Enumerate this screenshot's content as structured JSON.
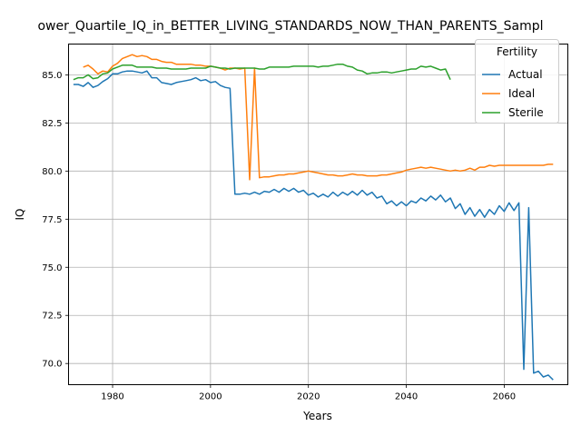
{
  "chart_data": {
    "type": "line",
    "title": "ower_Quartile_IQ_in_BETTER_LIVING_STANDARDS_NOW_THAN_PARENTS_Sampl",
    "xlabel": "Years",
    "ylabel": "IQ",
    "xlim": [
      1971,
      2073
    ],
    "ylim": [
      68.9,
      86.6
    ],
    "xticks": [
      1980,
      2000,
      2020,
      2040,
      2060
    ],
    "yticks": [
      70.0,
      72.5,
      75.0,
      77.5,
      80.0,
      82.5,
      85.0
    ],
    "grid": true,
    "legend": {
      "title": "Fertility",
      "placement": "top-right"
    },
    "series": [
      {
        "name": "Actual",
        "color": "#1f77b4",
        "x": [
          1972,
          1973,
          1974,
          1975,
          1976,
          1977,
          1978,
          1979,
          1980,
          1981,
          1982,
          1983,
          1984,
          1985,
          1986,
          1987,
          1988,
          1989,
          1990,
          1991,
          1992,
          1993,
          1994,
          1995,
          1996,
          1997,
          1998,
          1999,
          2000,
          2001,
          2002,
          2003,
          2004,
          2005,
          2006,
          2007,
          2008,
          2009,
          2010,
          2011,
          2012,
          2013,
          2014,
          2015,
          2016,
          2017,
          2018,
          2019,
          2020,
          2021,
          2022,
          2023,
          2024,
          2025,
          2026,
          2027,
          2028,
          2029,
          2030,
          2031,
          2032,
          2033,
          2034,
          2035,
          2036,
          2037,
          2038,
          2039,
          2040,
          2041,
          2042,
          2043,
          2044,
          2045,
          2046,
          2047,
          2048,
          2049,
          2050,
          2051,
          2052,
          2053,
          2054,
          2055,
          2056,
          2057,
          2058,
          2059,
          2060,
          2061,
          2062,
          2063,
          2064,
          2065,
          2066,
          2067,
          2068,
          2069,
          2070
        ],
        "y": [
          84.5,
          84.5,
          84.4,
          84.6,
          84.35,
          84.45,
          84.65,
          84.8,
          85.05,
          85.05,
          85.15,
          85.2,
          85.2,
          85.15,
          85.1,
          85.2,
          84.85,
          84.85,
          84.6,
          84.55,
          84.5,
          84.6,
          84.65,
          84.7,
          84.75,
          84.85,
          84.7,
          84.75,
          84.6,
          84.65,
          84.45,
          84.35,
          84.3,
          78.8,
          78.8,
          78.85,
          78.8,
          78.9,
          78.8,
          78.95,
          78.9,
          79.05,
          78.9,
          79.1,
          78.95,
          79.1,
          78.9,
          79.0,
          78.75,
          78.85,
          78.65,
          78.8,
          78.65,
          78.9,
          78.7,
          78.9,
          78.75,
          78.95,
          78.75,
          79.0,
          78.75,
          78.9,
          78.6,
          78.7,
          78.3,
          78.45,
          78.2,
          78.4,
          78.2,
          78.45,
          78.35,
          78.6,
          78.45,
          78.7,
          78.5,
          78.75,
          78.4,
          78.6,
          78.05,
          78.3,
          77.75,
          78.1,
          77.65,
          78.0,
          77.6,
          78.0,
          77.75,
          78.2,
          77.9,
          78.35,
          77.95,
          78.35,
          69.7,
          78.1,
          69.5,
          69.6,
          69.3,
          69.4,
          69.15
        ]
      },
      {
        "name": "Ideal",
        "color": "#ff7f0e",
        "x": [
          1974,
          1975,
          1976,
          1977,
          1978,
          1979,
          1980,
          1981,
          1982,
          1983,
          1984,
          1985,
          1986,
          1987,
          1988,
          1989,
          1990,
          1991,
          1992,
          1993,
          1994,
          1995,
          1996,
          1997,
          1998,
          1999,
          2000,
          2001,
          2002,
          2003,
          2004,
          2005,
          2006,
          2007,
          2008,
          2009,
          2010,
          2011,
          2012,
          2013,
          2014,
          2015,
          2016,
          2017,
          2018,
          2019,
          2020,
          2021,
          2022,
          2023,
          2024,
          2025,
          2026,
          2027,
          2028,
          2029,
          2030,
          2031,
          2032,
          2033,
          2034,
          2035,
          2036,
          2037,
          2038,
          2039,
          2040,
          2041,
          2042,
          2043,
          2044,
          2045,
          2046,
          2047,
          2048,
          2049,
          2050,
          2051,
          2052,
          2053,
          2054,
          2055,
          2056,
          2057,
          2058,
          2059,
          2060,
          2061,
          2062,
          2063,
          2064,
          2065,
          2066,
          2067,
          2068,
          2069,
          2070
        ],
        "y": [
          85.4,
          85.5,
          85.3,
          85.05,
          85.2,
          85.15,
          85.45,
          85.6,
          85.85,
          85.95,
          86.05,
          85.95,
          86.0,
          85.95,
          85.8,
          85.8,
          85.7,
          85.65,
          85.65,
          85.55,
          85.55,
          85.55,
          85.55,
          85.5,
          85.5,
          85.45,
          85.45,
          85.4,
          85.35,
          85.25,
          85.35,
          85.35,
          85.3,
          85.35,
          79.55,
          85.35,
          79.65,
          79.7,
          79.7,
          79.75,
          79.8,
          79.8,
          79.85,
          79.85,
          79.9,
          79.95,
          80.0,
          79.95,
          79.9,
          79.85,
          79.8,
          79.8,
          79.75,
          79.75,
          79.8,
          79.85,
          79.8,
          79.8,
          79.75,
          79.75,
          79.75,
          79.8,
          79.8,
          79.85,
          79.9,
          79.95,
          80.05,
          80.1,
          80.15,
          80.2,
          80.15,
          80.2,
          80.15,
          80.1,
          80.05,
          80.0,
          80.05,
          80.0,
          80.05,
          80.15,
          80.05,
          80.2,
          80.2,
          80.3,
          80.25,
          80.3,
          80.3,
          80.3,
          80.3,
          80.3,
          80.3,
          80.3,
          80.3,
          80.3,
          80.3,
          80.35,
          80.35
        ]
      },
      {
        "name": "Sterile",
        "color": "#2ca02c",
        "x": [
          1972,
          1973,
          1974,
          1975,
          1976,
          1977,
          1978,
          1979,
          1980,
          1981,
          1982,
          1983,
          1984,
          1985,
          1986,
          1987,
          1988,
          1989,
          1990,
          1991,
          1992,
          1993,
          1994,
          1995,
          1996,
          1997,
          1998,
          1999,
          2000,
          2001,
          2002,
          2003,
          2004,
          2005,
          2006,
          2007,
          2008,
          2009,
          2010,
          2011,
          2012,
          2013,
          2014,
          2015,
          2016,
          2017,
          2018,
          2019,
          2020,
          2021,
          2022,
          2023,
          2024,
          2025,
          2026,
          2027,
          2028,
          2029,
          2030,
          2031,
          2032,
          2033,
          2034,
          2035,
          2036,
          2037,
          2038,
          2039,
          2040,
          2041,
          2042,
          2043,
          2044,
          2045,
          2046,
          2047,
          2048,
          2049
        ],
        "y": [
          84.75,
          84.85,
          84.85,
          85.0,
          84.8,
          84.85,
          85.05,
          85.1,
          85.3,
          85.4,
          85.5,
          85.5,
          85.5,
          85.4,
          85.4,
          85.4,
          85.4,
          85.35,
          85.35,
          85.35,
          85.3,
          85.3,
          85.3,
          85.3,
          85.35,
          85.35,
          85.35,
          85.35,
          85.45,
          85.4,
          85.35,
          85.35,
          85.3,
          85.35,
          85.35,
          85.35,
          85.35,
          85.35,
          85.3,
          85.3,
          85.4,
          85.4,
          85.4,
          85.4,
          85.4,
          85.45,
          85.45,
          85.45,
          85.45,
          85.45,
          85.4,
          85.45,
          85.45,
          85.5,
          85.55,
          85.55,
          85.45,
          85.4,
          85.25,
          85.2,
          85.05,
          85.1,
          85.1,
          85.15,
          85.15,
          85.1,
          85.15,
          85.2,
          85.25,
          85.3,
          85.3,
          85.45,
          85.4,
          85.45,
          85.35,
          85.25,
          85.3,
          84.75
        ]
      }
    ]
  }
}
